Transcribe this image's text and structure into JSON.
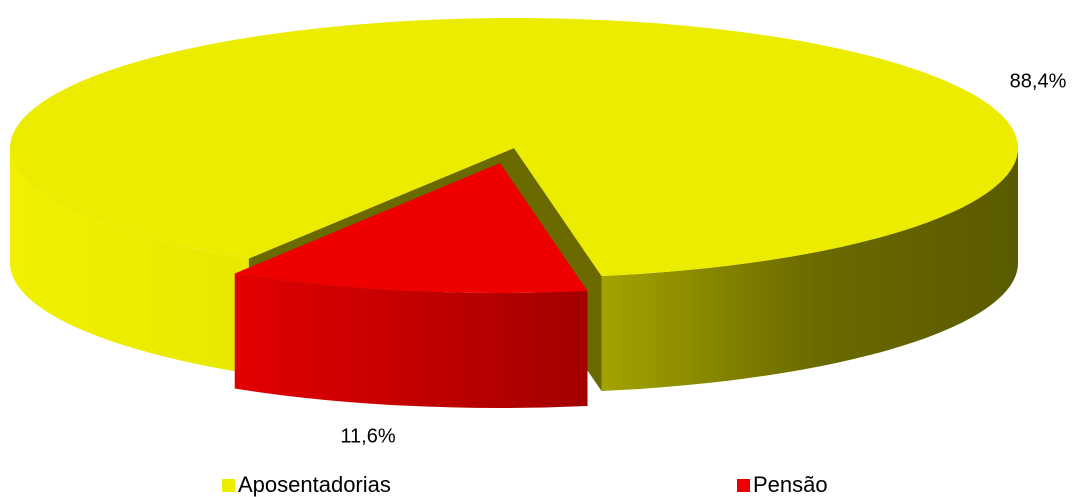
{
  "chart_data": {
    "type": "pie",
    "categories": [
      "Aposentadorias",
      "Pensão"
    ],
    "values": [
      88.4,
      11.6
    ],
    "value_labels": [
      "88,4%",
      "11,6%"
    ],
    "colors": [
      "#ecec00",
      "#ee0000"
    ],
    "legend": "bottom"
  }
}
